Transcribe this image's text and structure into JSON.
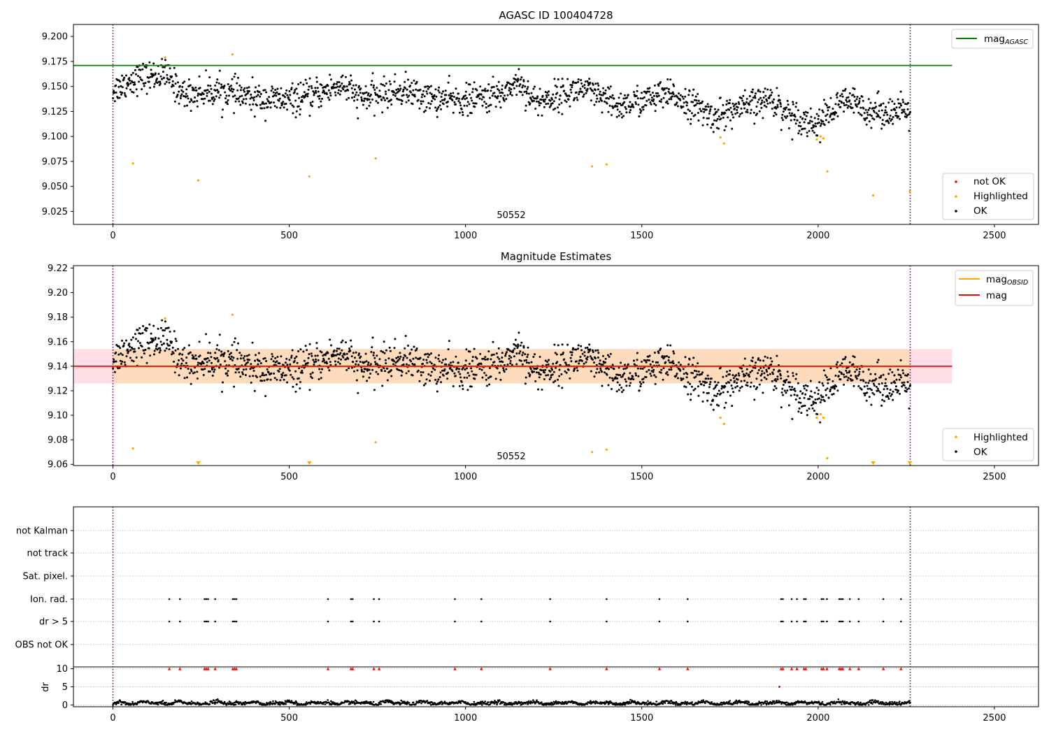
{
  "chart_data": [
    {
      "type": "scatter",
      "title": "AGASC ID 100404728",
      "annotation": "50552",
      "xlim": [
        -112,
        2625
      ],
      "ylim": [
        9.012,
        9.212
      ],
      "x_ticks": [
        0,
        500,
        1000,
        1500,
        2000,
        2500
      ],
      "y_ticks": [
        9.025,
        9.05,
        9.075,
        9.1,
        9.125,
        9.15,
        9.175,
        9.2
      ],
      "y_tick_labels": [
        "9.025",
        "9.050",
        "9.075",
        "9.100",
        "9.125",
        "9.150",
        "9.175",
        "9.200"
      ],
      "obs_boundaries": [
        0,
        2261
      ],
      "reference_line": {
        "label": "mag",
        "label_sub": "AGASC",
        "y": 9.171,
        "x_range": [
          -112,
          2380
        ],
        "color": "#008000"
      },
      "legend_lines": [
        {
          "label": "mag",
          "label_sub": "AGASC",
          "color": "#008000"
        }
      ],
      "legend_points": [
        {
          "label": "not OK",
          "color": "#ff0000"
        },
        {
          "label": "Highlighted",
          "color": "#ffa500"
        },
        {
          "label": "OK",
          "color": "#000000"
        }
      ],
      "ok_series": {
        "n": 1700,
        "x_range": [
          0,
          2261
        ],
        "color": "#000000",
        "trend": [
          [
            0,
            9.146
          ],
          [
            60,
            9.158
          ],
          [
            150,
            9.162
          ],
          [
            200,
            9.142
          ],
          [
            300,
            9.146
          ],
          [
            400,
            9.138
          ],
          [
            500,
            9.136
          ],
          [
            560,
            9.14
          ],
          [
            650,
            9.152
          ],
          [
            700,
            9.138
          ],
          [
            830,
            9.146
          ],
          [
            900,
            9.138
          ],
          [
            1000,
            9.136
          ],
          [
            1100,
            9.142
          ],
          [
            1150,
            9.156
          ],
          [
            1200,
            9.134
          ],
          [
            1330,
            9.148
          ],
          [
            1430,
            9.13
          ],
          [
            1550,
            9.14
          ],
          [
            1600,
            9.14
          ],
          [
            1700,
            9.12
          ],
          [
            1780,
            9.128
          ],
          [
            1870,
            9.138
          ],
          [
            1900,
            9.126
          ],
          [
            1990,
            9.112
          ],
          [
            2080,
            9.136
          ],
          [
            2150,
            9.126
          ],
          [
            2261,
            9.124
          ]
        ]
      },
      "highlighted_points": [
        [
          57,
          9.073
        ],
        [
          148,
          9.179
        ],
        [
          242,
          9.056
        ],
        [
          339,
          9.182
        ],
        [
          557,
          9.06
        ],
        [
          745,
          9.078
        ],
        [
          1359,
          9.07
        ],
        [
          1400,
          9.072
        ],
        [
          1723,
          9.099
        ],
        [
          1733,
          9.093
        ],
        [
          1996,
          9.097
        ],
        [
          2007,
          9.1
        ],
        [
          2015,
          9.098
        ],
        [
          2026,
          9.065
        ],
        [
          2156,
          9.041
        ],
        [
          2260,
          9.045
        ]
      ]
    },
    {
      "type": "scatter",
      "title": "Magnitude Estimates",
      "annotation": "50552",
      "xlim": [
        -112,
        2625
      ],
      "ylim": [
        9.059,
        9.222
      ],
      "x_ticks": [
        0,
        500,
        1000,
        1500,
        2000,
        2500
      ],
      "y_ticks": [
        9.06,
        9.08,
        9.1,
        9.12,
        9.14,
        9.16,
        9.18,
        9.2,
        9.22
      ],
      "y_tick_labels": [
        "9.06",
        "9.08",
        "9.10",
        "9.12",
        "9.14",
        "9.16",
        "9.18",
        "9.20",
        "9.22"
      ],
      "obs_boundaries": [
        0,
        2261
      ],
      "mag_line": {
        "y": 9.14,
        "x_range": [
          -112,
          2380
        ],
        "color": "#ff0000"
      },
      "mag_band": {
        "y_range": [
          9.126,
          9.154
        ],
        "x_range": [
          -112,
          2380
        ],
        "color": "#ffc0cb"
      },
      "obsid_band": {
        "y_range": [
          9.126,
          9.154
        ],
        "x_range": [
          0,
          2261
        ],
        "color": "#ffdab9"
      },
      "obsid_line": {
        "y": 9.14,
        "x_range": [
          0,
          2261
        ],
        "color": "#ffa500"
      },
      "legend_lines": [
        {
          "label": "mag",
          "label_sub": "OBSID",
          "color": "#ffa500"
        },
        {
          "label": "mag",
          "label_sub": "",
          "color": "#ff0000"
        }
      ],
      "legend_points": [
        {
          "label": "Highlighted",
          "color": "#ffa500"
        },
        {
          "label": "OK",
          "color": "#000000"
        }
      ],
      "highlighted_points": [
        [
          57,
          9.073
        ],
        [
          148,
          9.179
        ],
        [
          339,
          9.182
        ],
        [
          745,
          9.078
        ],
        [
          1359,
          9.07
        ],
        [
          1400,
          9.072
        ],
        [
          1723,
          9.098
        ],
        [
          1733,
          9.093
        ],
        [
          1996,
          9.098
        ],
        [
          2007,
          9.101
        ],
        [
          2015,
          9.098
        ],
        [
          2026,
          9.065
        ]
      ],
      "clipped_points": [
        242,
        557,
        2156,
        2260
      ]
    },
    {
      "type": "scatter",
      "title": "",
      "xlim": [
        -112,
        2625
      ],
      "x_ticks": [
        0,
        500,
        1000,
        1500,
        2000,
        2500
      ],
      "obs_boundaries": [
        0,
        2261
      ],
      "flag_rows": [
        "not Kalman",
        "not track",
        "Sat. pixel.",
        "Ion. rad.",
        "dr > 5",
        "OBS not OK"
      ],
      "flag_times": [
        160,
        190,
        260,
        265,
        270,
        290,
        340,
        345,
        350,
        610,
        675,
        680,
        740,
        755,
        970,
        1045,
        1240,
        1400,
        1550,
        1630,
        1895,
        1900,
        1925,
        1940,
        1960,
        1965,
        2010,
        2015,
        2025,
        2060,
        2065,
        2070,
        2090,
        2115,
        2185,
        2235
      ],
      "dr_ylim": [
        -0.5,
        10.5
      ],
      "dr_ticks": [
        0,
        5,
        10
      ],
      "dr_label": "dr",
      "dr_clipped_value": 10,
      "dr_outlier": [
        1890,
        5
      ],
      "dr_baseline_range": [
        0,
        1.5
      ]
    }
  ]
}
